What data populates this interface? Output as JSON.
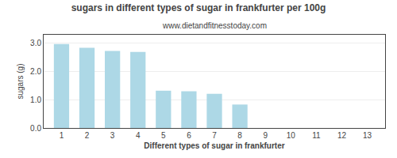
{
  "chart_data": {
    "type": "bar",
    "title": "sugars in different types of sugar in frankfurter per 100g",
    "subtitle": "www.dietandfitnesstoday.com",
    "xlabel": "Different types of sugar in frankfurter",
    "ylabel": "sugars (g)",
    "x": [
      1,
      2,
      3,
      4,
      5,
      6,
      7,
      8
    ],
    "values": [
      2.97,
      2.84,
      2.73,
      2.69,
      1.32,
      1.3,
      1.21,
      0.83
    ],
    "color": "#add8e6",
    "xlim": [
      0.3,
      13.7
    ],
    "xticks": [
      1,
      2,
      3,
      4,
      5,
      6,
      7,
      8,
      9,
      10,
      11,
      12,
      13
    ],
    "ylim": [
      0,
      3.3
    ],
    "yticks": [
      {
        "value": 0.0,
        "label": "0.0"
      },
      {
        "value": 1.0,
        "label": "1.0"
      },
      {
        "value": 2.0,
        "label": "2.0"
      },
      {
        "value": 3.0,
        "label": "3.0"
      }
    ],
    "grid": true
  }
}
